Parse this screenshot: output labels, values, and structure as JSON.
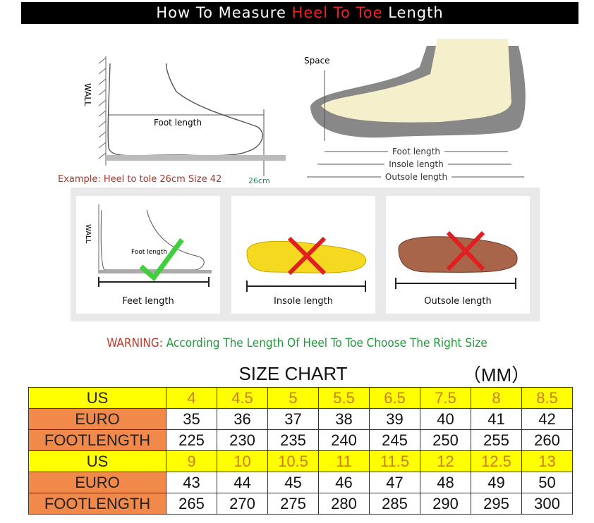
{
  "title": {
    "part1": "How To Measure ",
    "highlight": "Heel To Toe",
    "part2": " Length"
  },
  "diagram_left": {
    "wall": "WALL",
    "foot_length": "Foot length",
    "example": "Example: Heel to tole 26cm Size 42",
    "measure": "26cm"
  },
  "diagram_right": {
    "space": "Space",
    "foot_length": "Foot length",
    "insole_length": "Insole length",
    "outsole_length": "Outsole length"
  },
  "cards": [
    {
      "caption": "Feet length",
      "mark": "check",
      "wall": "WALL",
      "foot_length": "Foot length"
    },
    {
      "caption": "Insole length",
      "mark": "cross"
    },
    {
      "caption": "Outsole length",
      "mark": "cross"
    }
  ],
  "warning": {
    "label": "WARNING:",
    "text": "According The Length Of Heel To Toe Choose The Right Size"
  },
  "size_chart": {
    "title": "SIZE CHART",
    "unit": "（MM）",
    "rows": [
      {
        "label": "US",
        "values": [
          "4",
          "4.5",
          "5",
          "5.5",
          "6.5",
          "7.5",
          "8",
          "8.5"
        ]
      },
      {
        "label": "EURO",
        "values": [
          "35",
          "36",
          "37",
          "38",
          "39",
          "40",
          "41",
          "42"
        ]
      },
      {
        "label": "FOOTLENGTH",
        "values": [
          "225",
          "230",
          "235",
          "240",
          "245",
          "250",
          "255",
          "260"
        ]
      },
      {
        "label": "US",
        "values": [
          "9",
          "10",
          "10.5",
          "11",
          "11.5",
          "12",
          "12.5",
          "13"
        ]
      },
      {
        "label": "EURO",
        "values": [
          "43",
          "44",
          "45",
          "46",
          "47",
          "48",
          "49",
          "50"
        ]
      },
      {
        "label": "FOOTLENGTH",
        "values": [
          "265",
          "270",
          "275",
          "280",
          "285",
          "290",
          "295",
          "300"
        ]
      }
    ]
  },
  "colors": {
    "us_row": "#ffff00",
    "us_values": "#d4781a",
    "label_orange": "#f0894a",
    "title_red": "#e8262a",
    "warning_red": "#c0392b",
    "warning_green": "#1f9a3a"
  }
}
